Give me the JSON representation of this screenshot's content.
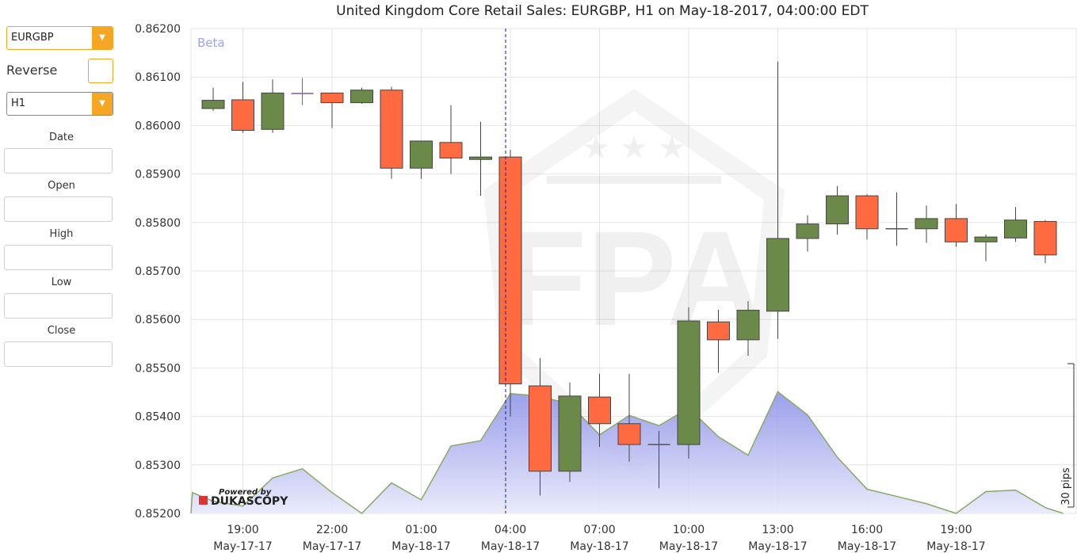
{
  "sidebar": {
    "symbol": "EURGBP",
    "reverse_label": "Reverse",
    "timeframe": "H1",
    "fields": [
      {
        "label": "Date",
        "value": ""
      },
      {
        "label": "Open",
        "value": ""
      },
      {
        "label": "High",
        "value": ""
      },
      {
        "label": "Low",
        "value": ""
      },
      {
        "label": "Close",
        "value": ""
      }
    ]
  },
  "colors": {
    "accent": "#f5a623",
    "bull": "#6b8a4a",
    "bear": "#ff6a40",
    "doji": "#7e57c2",
    "volume_fill": "#9fa3ee",
    "volume_line": "#8aa86a",
    "crosshair": "#1a1a9a"
  },
  "watermark": {
    "beta": "Beta",
    "logo_text": "FPA"
  },
  "powered_by": {
    "line1": "Powered by",
    "line2": "DUKASCOPY"
  },
  "pips_label": "30 pips",
  "chart_data": {
    "type": "candlestick",
    "title": "United Kingdom Core Retail Sales: EURGBP, H1 on May-18-2017, 04:00:00 EDT",
    "ylim": [
      0.852,
      0.862
    ],
    "yticks": [
      "0.86200",
      "0.86100",
      "0.86000",
      "0.85900",
      "0.85800",
      "0.85700",
      "0.85600",
      "0.85500",
      "0.85400",
      "0.85300",
      "0.85200"
    ],
    "x_ticks": [
      {
        "time": "19:00",
        "date": "May-17-17",
        "idx": 1
      },
      {
        "time": "22:00",
        "date": "May-17-17",
        "idx": 4
      },
      {
        "time": "01:00",
        "date": "May-18-17",
        "idx": 7
      },
      {
        "time": "04:00",
        "date": "May-18-17",
        "idx": 10
      },
      {
        "time": "07:00",
        "date": "May-18-17",
        "idx": 13
      },
      {
        "time": "10:00",
        "date": "May-18-17",
        "idx": 16
      },
      {
        "time": "13:00",
        "date": "May-18-17",
        "idx": 19
      },
      {
        "time": "16:00",
        "date": "May-18-17",
        "idx": 22
      },
      {
        "time": "19:00",
        "date": "May-18-17",
        "idx": 25
      }
    ],
    "marker_index": 10,
    "candles": [
      {
        "o": 0.86035,
        "h": 0.86078,
        "l": 0.8603,
        "c": 0.86052
      },
      {
        "o": 0.86053,
        "h": 0.8609,
        "l": 0.85985,
        "c": 0.8599
      },
      {
        "o": 0.85992,
        "h": 0.86095,
        "l": 0.85985,
        "c": 0.86067
      },
      {
        "o": 0.86066,
        "h": 0.86098,
        "l": 0.86042,
        "c": 0.86066
      },
      {
        "o": 0.86067,
        "h": 0.86068,
        "l": 0.85995,
        "c": 0.86047
      },
      {
        "o": 0.86047,
        "h": 0.86078,
        "l": 0.86045,
        "c": 0.86073
      },
      {
        "o": 0.86073,
        "h": 0.8608,
        "l": 0.8589,
        "c": 0.85912
      },
      {
        "o": 0.85912,
        "h": 0.85968,
        "l": 0.8589,
        "c": 0.85968
      },
      {
        "o": 0.85965,
        "h": 0.86042,
        "l": 0.859,
        "c": 0.85933
      },
      {
        "o": 0.8593,
        "h": 0.86007,
        "l": 0.85855,
        "c": 0.85935
      },
      {
        "o": 0.85935,
        "h": 0.8595,
        "l": 0.854,
        "c": 0.85467
      },
      {
        "o": 0.85463,
        "h": 0.8552,
        "l": 0.85237,
        "c": 0.85287
      },
      {
        "o": 0.85287,
        "h": 0.8547,
        "l": 0.85265,
        "c": 0.85442
      },
      {
        "o": 0.8544,
        "h": 0.85488,
        "l": 0.85337,
        "c": 0.85385
      },
      {
        "o": 0.85385,
        "h": 0.85488,
        "l": 0.85307,
        "c": 0.85342
      },
      {
        "o": 0.85342,
        "h": 0.8537,
        "l": 0.85252,
        "c": 0.85342
      },
      {
        "o": 0.85342,
        "h": 0.85625,
        "l": 0.85313,
        "c": 0.85597
      },
      {
        "o": 0.85595,
        "h": 0.8562,
        "l": 0.8549,
        "c": 0.85558
      },
      {
        "o": 0.85558,
        "h": 0.85638,
        "l": 0.85525,
        "c": 0.85619
      },
      {
        "o": 0.85617,
        "h": 0.86132,
        "l": 0.8556,
        "c": 0.85767
      },
      {
        "o": 0.85767,
        "h": 0.85815,
        "l": 0.8574,
        "c": 0.85797
      },
      {
        "o": 0.85797,
        "h": 0.85875,
        "l": 0.85775,
        "c": 0.85855
      },
      {
        "o": 0.85855,
        "h": 0.85858,
        "l": 0.85765,
        "c": 0.85787
      },
      {
        "o": 0.85787,
        "h": 0.85862,
        "l": 0.85752,
        "c": 0.85787
      },
      {
        "o": 0.85787,
        "h": 0.85835,
        "l": 0.85758,
        "c": 0.85808
      },
      {
        "o": 0.85808,
        "h": 0.85838,
        "l": 0.8575,
        "c": 0.8576
      },
      {
        "o": 0.8576,
        "h": 0.85775,
        "l": 0.8572,
        "c": 0.8577
      },
      {
        "o": 0.85768,
        "h": 0.85832,
        "l": 0.8576,
        "c": 0.85805
      },
      {
        "o": 0.85802,
        "h": 0.85805,
        "l": 0.85716,
        "c": 0.85733
      }
    ],
    "volume": [
      {
        "x": -1.6,
        "v": 0.852
      },
      {
        "x": -0.7,
        "v": 0.85243
      },
      {
        "x": 0.0,
        "v": 0.85225
      },
      {
        "x": 1.0,
        "v": 0.85215
      },
      {
        "x": 2.0,
        "v": 0.85273
      },
      {
        "x": 3.0,
        "v": 0.85292
      },
      {
        "x": 4.0,
        "v": 0.85243
      },
      {
        "x": 5.0,
        "v": 0.852
      },
      {
        "x": 6.0,
        "v": 0.85263
      },
      {
        "x": 7.0,
        "v": 0.85228
      },
      {
        "x": 8.0,
        "v": 0.85339
      },
      {
        "x": 9.0,
        "v": 0.8535
      },
      {
        "x": 10.0,
        "v": 0.85447
      },
      {
        "x": 11.0,
        "v": 0.85442
      },
      {
        "x": 12.0,
        "v": 0.85425
      },
      {
        "x": 13.0,
        "v": 0.85362
      },
      {
        "x": 14.0,
        "v": 0.85402
      },
      {
        "x": 15.0,
        "v": 0.85381
      },
      {
        "x": 16.0,
        "v": 0.85417
      },
      {
        "x": 17.0,
        "v": 0.85358
      },
      {
        "x": 18.0,
        "v": 0.8532
      },
      {
        "x": 19.0,
        "v": 0.85451
      },
      {
        "x": 20.0,
        "v": 0.85403
      },
      {
        "x": 21.0,
        "v": 0.85316
      },
      {
        "x": 22.0,
        "v": 0.8525
      },
      {
        "x": 23.0,
        "v": 0.85235
      },
      {
        "x": 24.0,
        "v": 0.8522
      },
      {
        "x": 25.0,
        "v": 0.852
      },
      {
        "x": 26.0,
        "v": 0.85245
      },
      {
        "x": 27.0,
        "v": 0.85248
      },
      {
        "x": 28.0,
        "v": 0.85212
      },
      {
        "x": 28.6,
        "v": 0.852
      }
    ]
  }
}
